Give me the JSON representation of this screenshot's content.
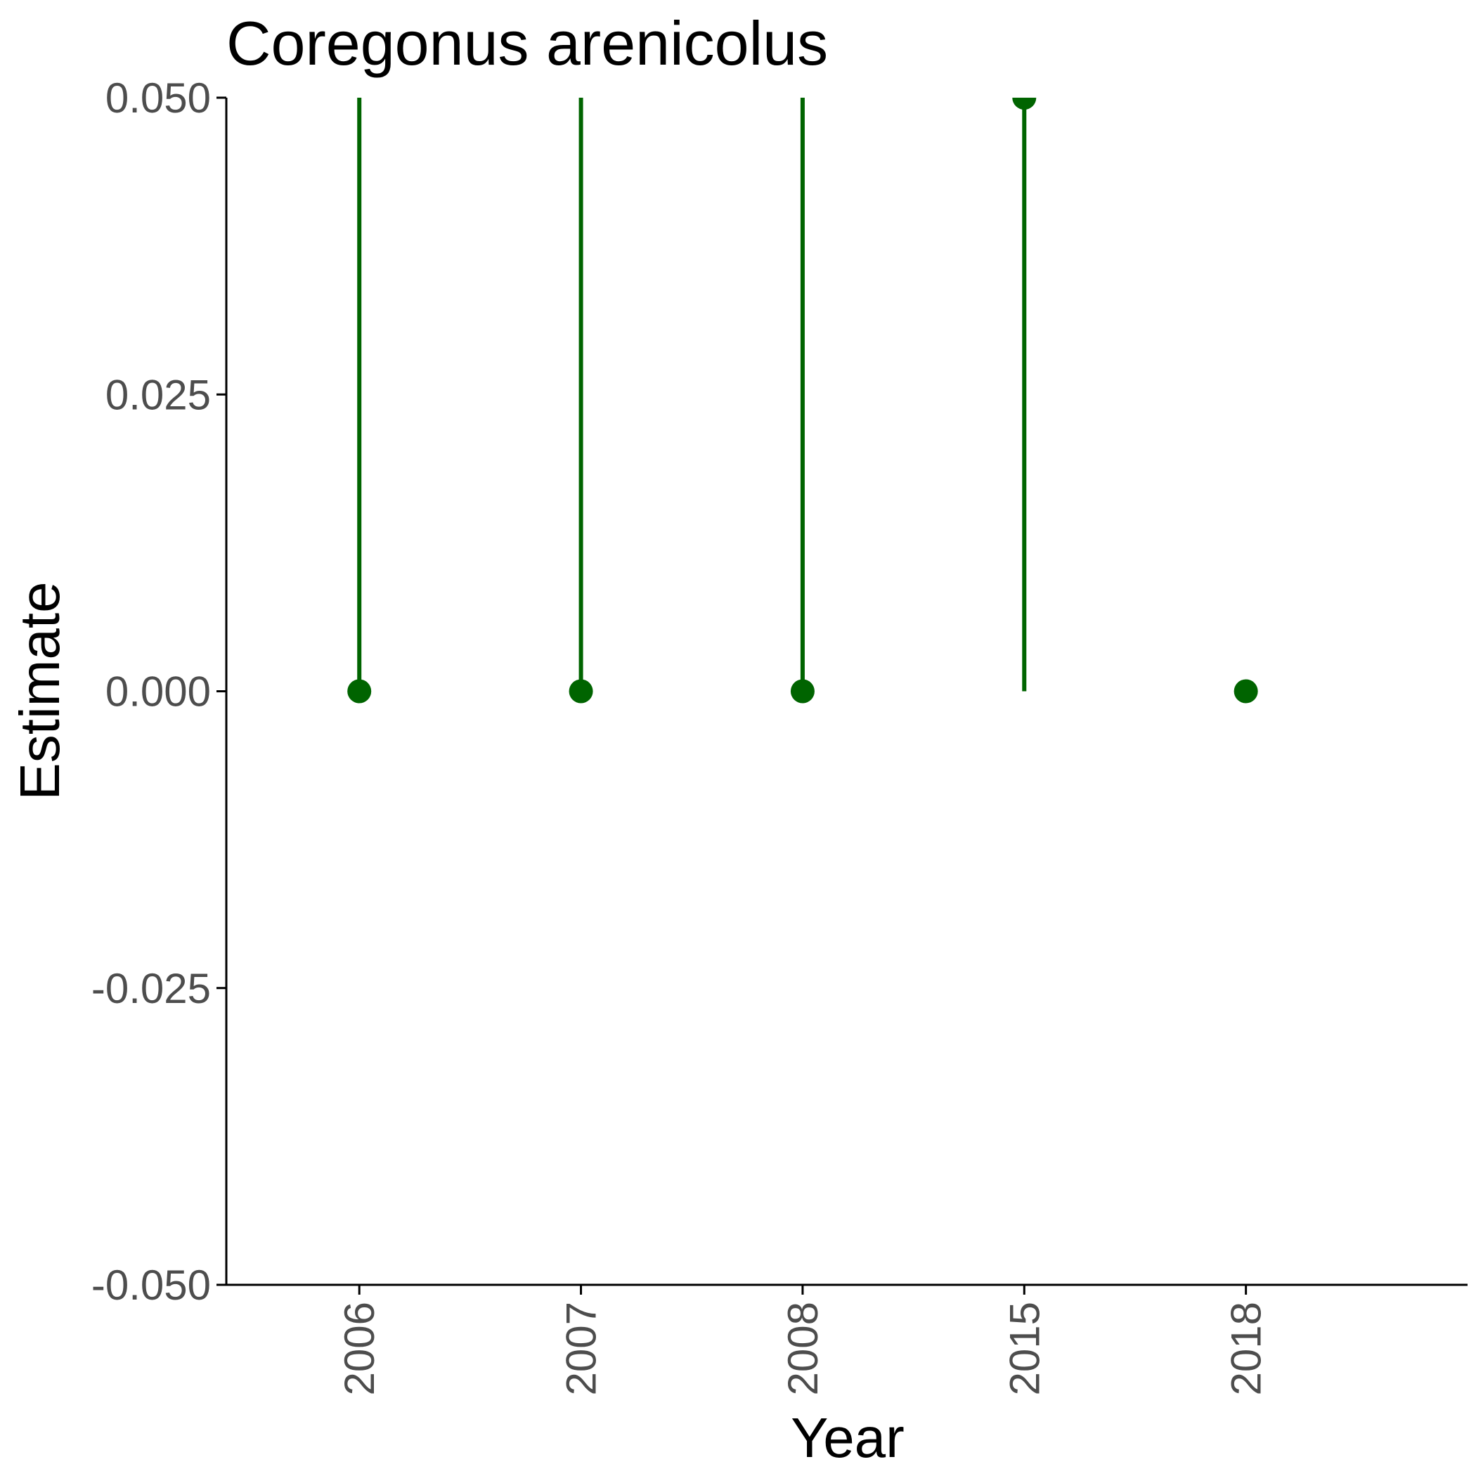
{
  "chart_data": {
    "type": "scatter",
    "title": "Coregonus arenicolus",
    "xlabel": "Year",
    "ylabel": "Estimate",
    "categories": [
      "2006",
      "2007",
      "2008",
      "2015",
      "2018"
    ],
    "series": [
      {
        "points": [
          {
            "x": "2006",
            "y": 0.0,
            "ymin": 0.0,
            "ymax": 0.05
          },
          {
            "x": "2007",
            "y": 0.0,
            "ymin": 0.0,
            "ymax": 0.05
          },
          {
            "x": "2008",
            "y": 0.0,
            "ymin": 0.0,
            "ymax": 0.05
          },
          {
            "x": "2015",
            "y": 0.05,
            "ymin": 0.0,
            "ymax": 0.05
          },
          {
            "x": "2018",
            "y": 0.0,
            "ymin": 0.0,
            "ymax": 0.0
          }
        ]
      }
    ],
    "ylim": [
      -0.05,
      0.05
    ],
    "yticks": [
      -0.05,
      -0.025,
      0.0,
      0.025,
      0.05
    ],
    "ytick_labels": [
      "-0.050",
      "-0.025",
      "0.000",
      "0.025",
      "0.050"
    ],
    "xtick_rotation": 90,
    "grid": false,
    "legend": "none",
    "colors": {
      "series": "#006400",
      "axis": "#000000",
      "tick_text": "#4d4d4d"
    }
  }
}
